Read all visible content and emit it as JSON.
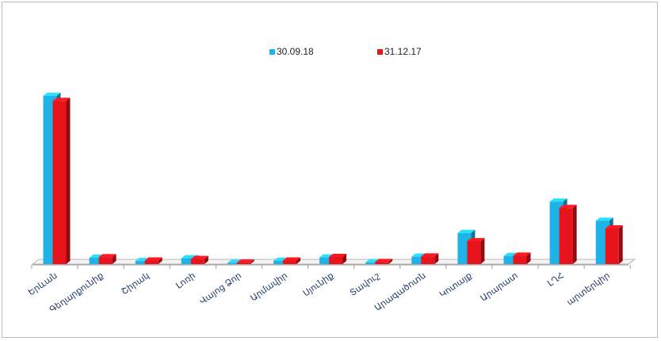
{
  "chart_data": {
    "type": "bar",
    "bar_style": "3d",
    "categories": [
      "Երևան",
      "Գեղարքունիք",
      "Շիրակ",
      "Լոռի",
      "Վայոց Ձոր",
      "Արմավիր",
      "Սյունիք",
      "Տավուշ",
      "Արագածոտն",
      "Կոտայք",
      "Արարատ",
      "ԼՂՀ",
      "արտերկիր"
    ],
    "series": [
      {
        "name": "30.09.18",
        "color": "#1fb4e8",
        "values": [
          66.0,
          2.5,
          1.2,
          2.3,
          0.5,
          1.3,
          2.6,
          0.7,
          2.9,
          12.2,
          3.2,
          24.5,
          17.0
        ]
      },
      {
        "name": "31.12.17",
        "color": "#e8141c",
        "values": [
          64.0,
          2.7,
          1.4,
          2.0,
          0.6,
          1.4,
          2.8,
          0.8,
          3.0,
          9.0,
          3.3,
          22.0,
          14.0
        ]
      }
    ],
    "legend_position": "top-center",
    "y_axis_visible": false,
    "grid": false,
    "ylim": [
      0,
      70
    ]
  }
}
